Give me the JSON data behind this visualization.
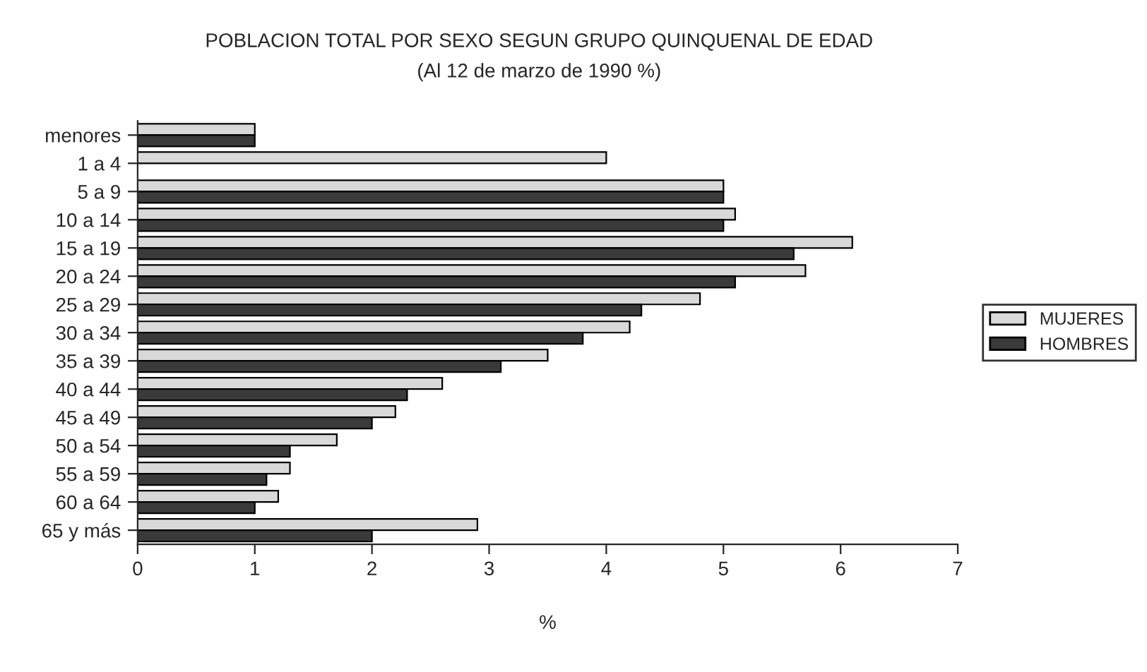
{
  "chart_data": {
    "type": "bar",
    "orientation": "horizontal",
    "title": "POBLACION TOTAL POR SEXO SEGUN GRUPO QUINQUENAL DE EDAD",
    "subtitle": "(Al 12 de marzo de 1990 %)",
    "xlabel": "%",
    "categories": [
      "menores",
      "1 a 4",
      "5 a 9",
      "10 a 14",
      "15 a 19",
      "20 a 24",
      "25 a 29",
      "30 a 34",
      "35 a 39",
      "40 a 44",
      "45 a 49",
      "50 a 54",
      "55 a 59",
      "60 a 64",
      "65 y más"
    ],
    "series": [
      {
        "name": "MUJERES",
        "color": "#d9d9d9",
        "values": [
          1.0,
          4.0,
          5.0,
          5.1,
          6.1,
          5.7,
          4.8,
          4.2,
          3.5,
          2.6,
          2.2,
          1.7,
          1.3,
          1.2,
          2.9
        ]
      },
      {
        "name": "HOMBRES",
        "color": "#3a3a3a",
        "values": [
          1.0,
          null,
          5.0,
          5.0,
          5.6,
          5.1,
          4.3,
          3.8,
          3.1,
          2.3,
          2.0,
          1.3,
          1.1,
          1.0,
          2.0
        ]
      }
    ],
    "xlim": [
      0,
      7
    ],
    "xticks": [
      0,
      1,
      2,
      3,
      4,
      5,
      6,
      7
    ],
    "grid": false,
    "legend": "right"
  }
}
